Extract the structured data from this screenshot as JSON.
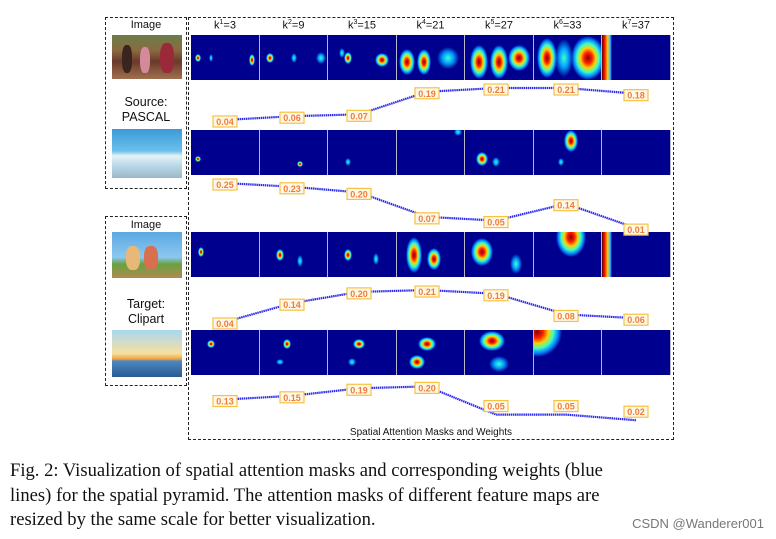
{
  "figure": {
    "left_panels": [
      {
        "image_label": "Image",
        "domain_label_line1": "Source:",
        "domain_label_line2": "PASCAL"
      },
      {
        "image_label": "Image",
        "domain_label_line1": "Target:",
        "domain_label_line2": "Clipart"
      }
    ],
    "kernel_headers": [
      {
        "base": "k",
        "sup": "1",
        "value": "=3"
      },
      {
        "base": "k",
        "sup": "2",
        "value": "=9"
      },
      {
        "base": "k",
        "sup": "3",
        "value": "=15"
      },
      {
        "base": "k",
        "sup": "4",
        "value": "=21"
      },
      {
        "base": "k",
        "sup": "5",
        "value": "=27"
      },
      {
        "base": "k",
        "sup": "6",
        "value": "=33"
      },
      {
        "base": "k",
        "sup": "7",
        "value": "=37"
      }
    ],
    "weights": [
      [
        "0.04",
        "0.06",
        "0.07",
        "0.19",
        "0.21",
        "0.21",
        "0.18"
      ],
      [
        "0.25",
        "0.23",
        "0.20",
        "0.07",
        "0.05",
        "0.14",
        "0.01"
      ],
      [
        "0.04",
        "0.14",
        "0.20",
        "0.21",
        "0.19",
        "0.08",
        "0.06"
      ],
      [
        "0.13",
        "0.15",
        "0.19",
        "0.20",
        "0.05",
        "0.05",
        "0.02"
      ]
    ],
    "line_color": "#2a2af0",
    "label_border_color": "#f7c240",
    "label_text_color": "#ee7d3b",
    "heatmap_background": "#00008f",
    "bottom_title": "Spatial Attention Masks and Weights"
  },
  "caption": {
    "line1": "Fig. 2: Visualization of spatial attention masks and corresponding weights (blue",
    "line2": "lines) for the spatial pyramid. The attention masks of different feature maps are",
    "line3": "resized by the same scale for better visualization."
  },
  "watermark": "CSDN @Wanderer001"
}
